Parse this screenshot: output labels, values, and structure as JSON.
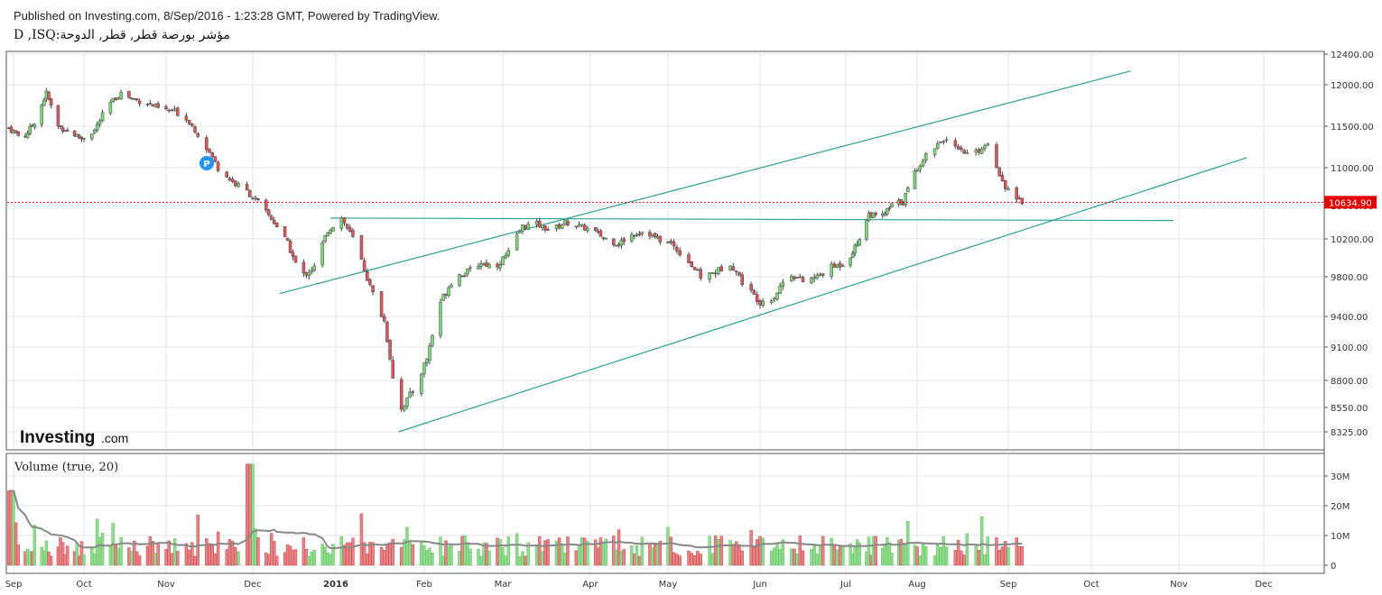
{
  "header": {
    "published": "Published on Investing.com, 8/Sep/2016 - 1:23:28 GMT, Powered by TradingView.",
    "symbol": "D ,ISQ:مؤشر بورصة قطر, قطر, الدوحة"
  },
  "brand": {
    "logo_main": "Investing",
    "logo_suffix": ".com"
  },
  "volume_panel": {
    "title": "Volume (true, 20)"
  },
  "event_marker": {
    "label": "P"
  },
  "colors": {
    "up": "#7ed87b",
    "down": "#d9585b",
    "upVol": "#8fdc8c",
    "downVol": "#e48587",
    "line": "#2aa198",
    "ma": "#888888",
    "lastPriceTag": "#e80000"
  },
  "chart_data": {
    "type": "candlestick",
    "title": "",
    "last_price": 10634.9,
    "last_price_label": "10634.90",
    "y_ticks": [
      {
        "v": 12400,
        "l": "12400.00"
      },
      {
        "v": 12000,
        "l": "12000.00"
      },
      {
        "v": 11500,
        "l": "11500.00"
      },
      {
        "v": 11000,
        "l": "11000.00"
      },
      {
        "v": 10600,
        "l": "10600.00"
      },
      {
        "v": 10200,
        "l": "10200.00"
      },
      {
        "v": 9800,
        "l": "9800.00"
      },
      {
        "v": 9400,
        "l": "9400.00"
      },
      {
        "v": 9100,
        "l": "9100.00"
      },
      {
        "v": 8800,
        "l": "8800.00"
      },
      {
        "v": 8550,
        "l": "8550.00"
      },
      {
        "v": 8325,
        "l": "8325.00"
      }
    ],
    "x_ticks": [
      {
        "d": "2015-09-01",
        "l": "Sep",
        "bold": false
      },
      {
        "d": "2015-10-01",
        "l": "Oct",
        "bold": false
      },
      {
        "d": "2015-11-01",
        "l": "Nov",
        "bold": false
      },
      {
        "d": "2015-12-01",
        "l": "Dec",
        "bold": false
      },
      {
        "d": "2016-01-01",
        "l": "2016",
        "bold": true
      },
      {
        "d": "2016-02-01",
        "l": "Feb",
        "bold": false
      },
      {
        "d": "2016-03-01",
        "l": "Mar",
        "bold": false
      },
      {
        "d": "2016-04-01",
        "l": "Apr",
        "bold": false
      },
      {
        "d": "2016-05-01",
        "l": "May",
        "bold": false
      },
      {
        "d": "2016-06-01",
        "l": "Jun",
        "bold": false
      },
      {
        "d": "2016-07-01",
        "l": "Jul",
        "bold": false
      },
      {
        "d": "2016-08-01",
        "l": "Aug",
        "bold": false
      },
      {
        "d": "2016-09-01",
        "l": "Sep",
        "bold": false
      },
      {
        "d": "2016-10-01",
        "l": "Oct",
        "bold": false
      },
      {
        "d": "2016-11-01",
        "l": "Nov",
        "bold": false
      },
      {
        "d": "2016-12-01",
        "l": "Dec",
        "bold": false
      }
    ],
    "series": [
      {
        "name": "",
        "x": "2015-08-30",
        "value": 11480
      },
      {
        "x": "2015-09-05",
        "value": 11350
      },
      {
        "x": "2015-09-10",
        "value": 11550
      },
      {
        "x": "2015-09-15",
        "value": 11900
      },
      {
        "x": "2015-09-20",
        "value": 11500
      },
      {
        "x": "2015-09-25",
        "value": 11430
      },
      {
        "x": "2015-09-30",
        "value": 11350
      },
      {
        "x": "2015-10-05",
        "value": 11450
      },
      {
        "x": "2015-10-10",
        "value": 11750
      },
      {
        "x": "2015-10-15",
        "value": 11900
      },
      {
        "x": "2015-10-20",
        "value": 11820
      },
      {
        "x": "2015-10-25",
        "value": 11780
      },
      {
        "x": "2015-10-30",
        "value": 11700
      },
      {
        "x": "2015-11-04",
        "value": 11680
      },
      {
        "x": "2015-11-09",
        "value": 11560
      },
      {
        "x": "2015-11-14",
        "value": 11300
      },
      {
        "x": "2015-11-19",
        "value": 11000
      },
      {
        "x": "2015-11-24",
        "value": 10850
      },
      {
        "x": "2015-11-29",
        "value": 10750
      },
      {
        "x": "2015-12-04",
        "value": 10600
      },
      {
        "x": "2015-12-09",
        "value": 10400
      },
      {
        "x": "2015-12-14",
        "value": 10150
      },
      {
        "x": "2015-12-19",
        "value": 9800
      },
      {
        "x": "2015-12-24",
        "value": 9900
      },
      {
        "x": "2015-12-29",
        "value": 10300
      },
      {
        "x": "2016-01-03",
        "value": 10450
      },
      {
        "x": "2016-01-08",
        "value": 10150
      },
      {
        "x": "2016-01-13",
        "value": 9700
      },
      {
        "x": "2016-01-18",
        "value": 9350
      },
      {
        "x": "2016-01-23",
        "value": 8500
      },
      {
        "x": "2016-01-28",
        "value": 8700
      },
      {
        "x": "2016-02-02",
        "value": 9000
      },
      {
        "x": "2016-02-07",
        "value": 9550
      },
      {
        "x": "2016-02-12",
        "value": 9800
      },
      {
        "x": "2016-02-17",
        "value": 9850
      },
      {
        "x": "2016-02-22",
        "value": 9950
      },
      {
        "x": "2016-02-27",
        "value": 9900
      },
      {
        "x": "2016-03-03",
        "value": 10050
      },
      {
        "x": "2016-03-08",
        "value": 10350
      },
      {
        "x": "2016-03-13",
        "value": 10380
      },
      {
        "x": "2016-03-18",
        "value": 10300
      },
      {
        "x": "2016-03-23",
        "value": 10400
      },
      {
        "x": "2016-03-28",
        "value": 10350
      },
      {
        "x": "2016-04-02",
        "value": 10300
      },
      {
        "x": "2016-04-07",
        "value": 10200
      },
      {
        "x": "2016-04-12",
        "value": 10150
      },
      {
        "x": "2016-04-17",
        "value": 10250
      },
      {
        "x": "2016-04-22",
        "value": 10300
      },
      {
        "x": "2016-04-27",
        "value": 10200
      },
      {
        "x": "2016-05-02",
        "value": 10150
      },
      {
        "x": "2016-05-07",
        "value": 10000
      },
      {
        "x": "2016-05-12",
        "value": 9800
      },
      {
        "x": "2016-05-17",
        "value": 9850
      },
      {
        "x": "2016-05-22",
        "value": 9950
      },
      {
        "x": "2016-05-27",
        "value": 9700
      },
      {
        "x": "2016-06-01",
        "value": 9550
      },
      {
        "x": "2016-06-06",
        "value": 9600
      },
      {
        "x": "2016-06-11",
        "value": 9850
      },
      {
        "x": "2016-06-16",
        "value": 9750
      },
      {
        "x": "2016-06-21",
        "value": 9800
      },
      {
        "x": "2016-06-26",
        "value": 9900
      },
      {
        "x": "2016-07-01",
        "value": 9950
      },
      {
        "x": "2016-07-06",
        "value": 10150
      },
      {
        "x": "2016-07-11",
        "value": 10500
      },
      {
        "x": "2016-07-16",
        "value": 10450
      },
      {
        "x": "2016-07-21",
        "value": 10600
      },
      {
        "x": "2016-07-26",
        "value": 10650
      },
      {
        "x": "2016-07-31",
        "value": 10950
      },
      {
        "x": "2016-08-05",
        "value": 11200
      },
      {
        "x": "2016-08-10",
        "value": 11350
      },
      {
        "x": "2016-08-15",
        "value": 11200
      },
      {
        "x": "2016-08-20",
        "value": 11150
      },
      {
        "x": "2016-08-25",
        "value": 11300
      },
      {
        "x": "2016-08-30",
        "value": 10850
      },
      {
        "x": "2016-09-04",
        "value": 10640
      }
    ],
    "volume_ticks": [
      {
        "v": 0,
        "l": "0"
      },
      {
        "v": 10,
        "l": "10M"
      },
      {
        "v": 20,
        "l": "20M"
      },
      {
        "v": 30,
        "l": "30M"
      }
    ],
    "trend_lines": [
      {
        "from": [
          "2015-12-11",
          9630
        ],
        "to": [
          "2016-10-15",
          12180
        ]
      },
      {
        "from": [
          "2016-01-23",
          8325
        ],
        "to": [
          "2016-11-25",
          11120
        ]
      },
      {
        "from": [
          "2015-12-30",
          10450
        ],
        "to": [
          "2016-10-30",
          10420
        ]
      }
    ]
  }
}
